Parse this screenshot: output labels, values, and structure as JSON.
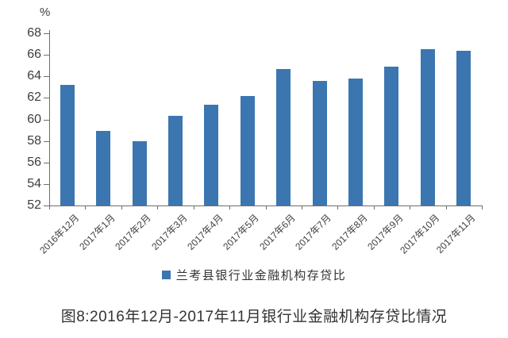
{
  "chart": {
    "unit_label": "%",
    "y_ticks": [
      52,
      54,
      56,
      58,
      60,
      62,
      64,
      66,
      68
    ]
  },
  "chart_data": {
    "type": "bar",
    "title": "",
    "categories": [
      "2016年12月",
      "2017年1月",
      "2017年2月",
      "2017年3月",
      "2017年4月",
      "2017年5月",
      "2017年6月",
      "2017年7月",
      "2017年8月",
      "2017年9月",
      "2017年10月",
      "2017年11月"
    ],
    "values": [
      63.2,
      58.9,
      58.0,
      60.3,
      61.4,
      62.2,
      64.7,
      63.6,
      63.8,
      64.9,
      66.5,
      66.4
    ],
    "xlabel": "",
    "ylabel": "%",
    "ylim": [
      52,
      68
    ],
    "grid": false,
    "legend_position": "bottom",
    "bar_color": "#3b76b0"
  },
  "legend": {
    "label": "兰考县银行业金融机构存贷比",
    "marker_color": "#3b76b0"
  },
  "caption": "图8:2016年12月-2017年11月银行业金融机构存贷比情况",
  "colors": {
    "bar": "#3b76b0",
    "axis": "#6e6e6e",
    "text": "#3d3d3d"
  }
}
